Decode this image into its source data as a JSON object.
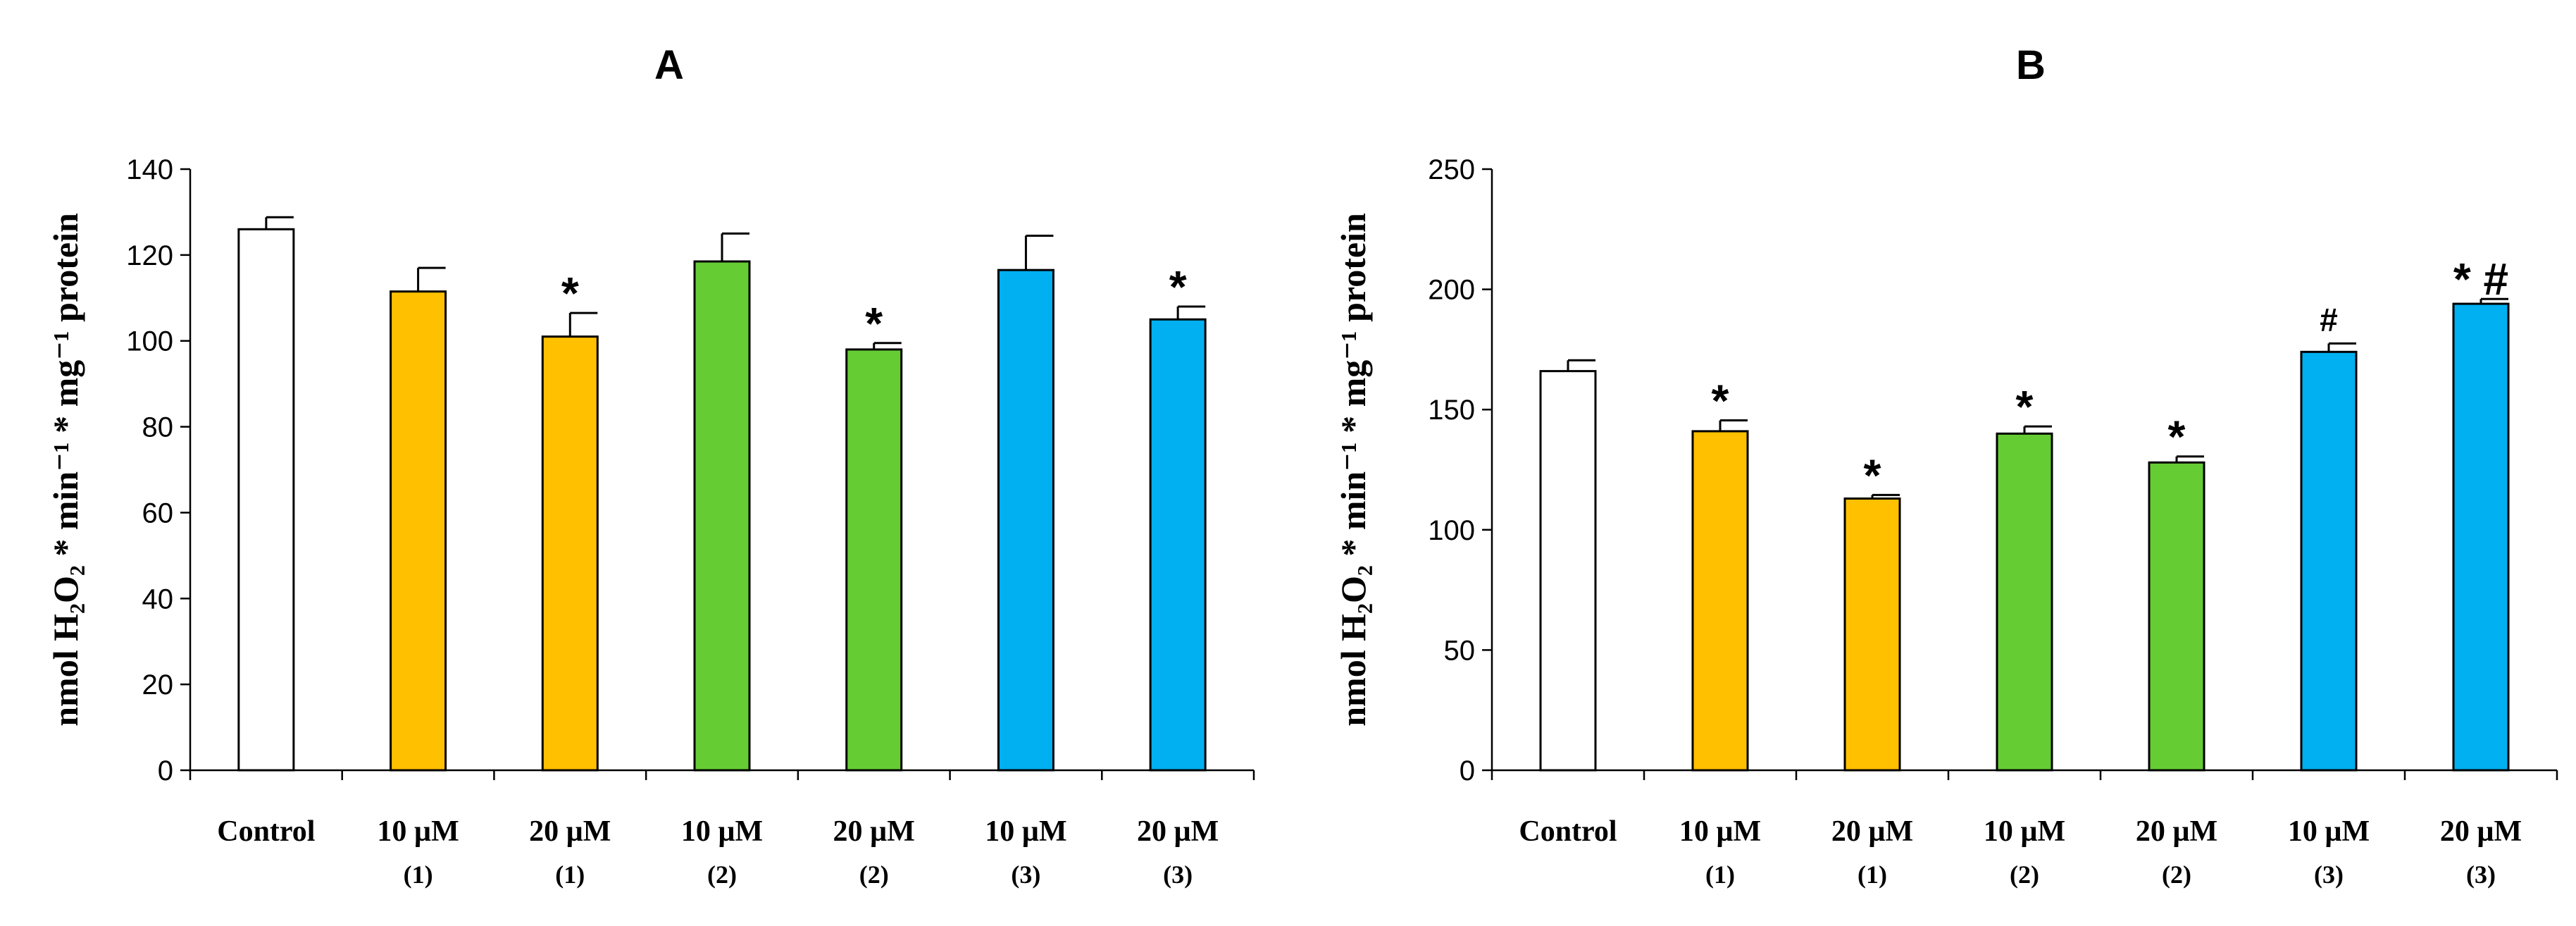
{
  "chart_data": [
    {
      "type": "bar",
      "title": "A",
      "ylabel": "nmol H₂O₂ * min⁻¹ * mg⁻¹ protein",
      "ylim": [
        0,
        140
      ],
      "yticks": [
        0,
        20,
        40,
        60,
        80,
        100,
        120,
        140
      ],
      "categories": [
        {
          "label": "Control",
          "sub": ""
        },
        {
          "label": "10 µM",
          "sub": "(1)"
        },
        {
          "label": "20 µM",
          "sub": "(1)"
        },
        {
          "label": "10 µM",
          "sub": "(2)"
        },
        {
          "label": "20 µM",
          "sub": "(2)"
        },
        {
          "label": "10 µM",
          "sub": "(3)"
        },
        {
          "label": "20 µM",
          "sub": "(3)"
        }
      ],
      "values": [
        126,
        111.5,
        101,
        118.5,
        98,
        116.5,
        105
      ],
      "errors": [
        2.8,
        5.5,
        5.5,
        6.5,
        1.5,
        8,
        3
      ],
      "colors": [
        "#ffffff",
        "#ffc000",
        "#ffc000",
        "#66cc33",
        "#66cc33",
        "#00b0f0",
        "#00b0f0"
      ],
      "annotations": [
        "",
        "",
        "*",
        "",
        "*",
        "",
        "*"
      ],
      "grid": false
    },
    {
      "type": "bar",
      "title": "B",
      "ylabel": "nmol H₂O₂ * min⁻¹ * mg⁻¹ protein",
      "ylim": [
        0,
        250
      ],
      "yticks": [
        0,
        50,
        100,
        150,
        200,
        250
      ],
      "categories": [
        {
          "label": "Control",
          "sub": ""
        },
        {
          "label": "10 µM",
          "sub": "(1)"
        },
        {
          "label": "20 µM",
          "sub": "(1)"
        },
        {
          "label": "10 µM",
          "sub": "(2)"
        },
        {
          "label": "20 µM",
          "sub": "(2)"
        },
        {
          "label": "10 µM",
          "sub": "(3)"
        },
        {
          "label": "20 µM",
          "sub": "(3)"
        }
      ],
      "values": [
        166,
        141,
        113,
        140,
        128,
        174,
        194
      ],
      "errors": [
        4.5,
        4.5,
        1.5,
        3,
        2.5,
        3.5,
        2
      ],
      "colors": [
        "#ffffff",
        "#ffc000",
        "#ffc000",
        "#66cc33",
        "#66cc33",
        "#00b0f0",
        "#00b0f0"
      ],
      "annotations": [
        "",
        "*",
        "*",
        "*",
        "*",
        "#",
        "* #"
      ],
      "grid": false
    }
  ]
}
